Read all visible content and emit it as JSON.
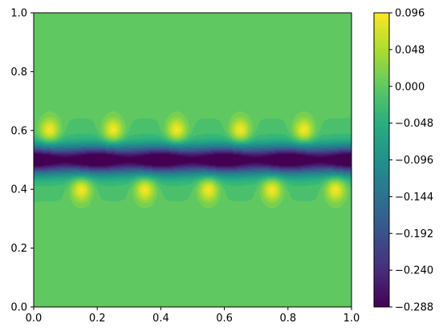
{
  "chart_data": {
    "type": "contourf",
    "title": "",
    "xlabel": "",
    "ylabel": "",
    "xlim": [
      0.0,
      1.0
    ],
    "ylim": [
      0.0,
      1.0
    ],
    "xticks": [
      "0.0",
      "0.2",
      "0.4",
      "0.6",
      "0.8",
      "1.0"
    ],
    "yticks": [
      "0.0",
      "0.2",
      "0.4",
      "0.6",
      "0.8",
      "1.0"
    ],
    "colormap": "viridis",
    "grid": false,
    "colorbar": {
      "placement": "right",
      "range": [
        -0.288,
        0.096
      ],
      "ticks": [
        "0.096",
        "0.048",
        "0.000",
        "−0.048",
        "−0.096",
        "−0.144",
        "−0.192",
        "−0.240",
        "−0.288"
      ],
      "tick_values": [
        0.096,
        0.048,
        0.0,
        -0.048,
        -0.096,
        -0.144,
        -0.192,
        -0.24,
        -0.288
      ]
    },
    "field": {
      "background_value": 0.0,
      "trough_band": {
        "y": 0.5,
        "value": -0.288
      },
      "peaks_upper": {
        "y": 0.6,
        "x": [
          0.05,
          0.25,
          0.45,
          0.65,
          0.85
        ],
        "value": 0.096
      },
      "peaks_lower": {
        "y": 0.4,
        "x": [
          0.15,
          0.35,
          0.55,
          0.75,
          0.95
        ],
        "value": 0.096
      }
    }
  }
}
